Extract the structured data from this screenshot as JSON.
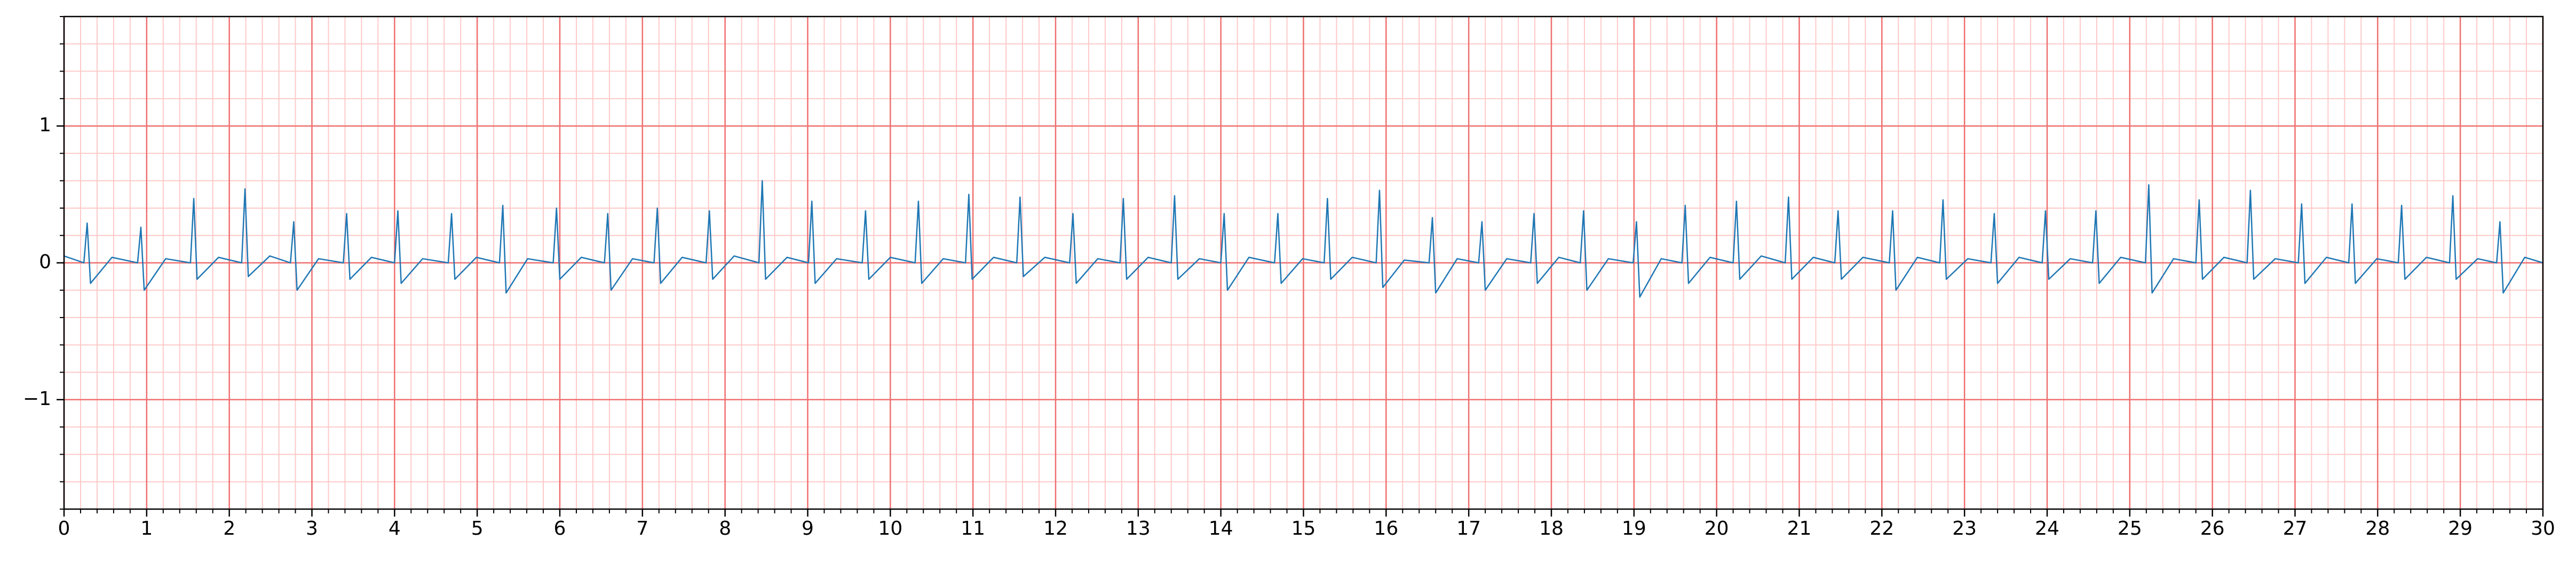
{
  "chart_data": {
    "type": "line",
    "x": [
      0,
      0.24,
      0.28,
      0.32,
      0.58,
      0.89,
      0.93,
      0.97,
      1.23,
      1.53,
      1.57,
      1.61,
      1.87,
      2.15,
      2.19,
      2.23,
      2.49,
      2.74,
      2.78,
      2.82,
      3.08,
      3.38,
      3.42,
      3.46,
      3.72,
      4.0,
      4.04,
      4.08,
      4.34,
      4.65,
      4.69,
      4.73,
      4.99,
      5.27,
      5.31,
      5.35,
      5.61,
      5.92,
      5.96,
      6.0,
      6.26,
      6.54,
      6.58,
      6.62,
      6.88,
      7.14,
      7.18,
      7.22,
      7.48,
      7.77,
      7.81,
      7.85,
      8.11,
      8.41,
      8.45,
      8.49,
      8.75,
      9.01,
      9.05,
      9.09,
      9.35,
      9.66,
      9.7,
      9.74,
      10.0,
      10.3,
      10.34,
      10.38,
      10.64,
      10.91,
      10.95,
      10.99,
      11.25,
      11.53,
      11.57,
      11.61,
      11.87,
      12.17,
      12.21,
      12.25,
      12.51,
      12.78,
      12.82,
      12.86,
      13.12,
      13.4,
      13.44,
      13.48,
      13.74,
      14.0,
      14.04,
      14.08,
      14.34,
      14.65,
      14.69,
      14.73,
      14.99,
      15.25,
      15.29,
      15.33,
      15.59,
      15.88,
      15.92,
      15.96,
      16.22,
      16.52,
      16.56,
      16.6,
      16.86,
      17.12,
      17.16,
      17.2,
      17.46,
      17.75,
      17.79,
      17.83,
      18.09,
      18.35,
      18.39,
      18.43,
      18.69,
      18.99,
      19.03,
      19.07,
      19.33,
      19.58,
      19.62,
      19.66,
      19.92,
      20.2,
      20.24,
      20.28,
      20.54,
      20.83,
      20.87,
      20.91,
      21.17,
      21.43,
      21.47,
      21.51,
      21.77,
      22.09,
      22.13,
      22.17,
      22.43,
      22.7,
      22.74,
      22.78,
      23.04,
      23.32,
      23.36,
      23.4,
      23.66,
      23.94,
      23.98,
      24.02,
      24.28,
      24.55,
      24.59,
      24.63,
      24.89,
      25.19,
      25.23,
      25.27,
      25.53,
      25.8,
      25.84,
      25.88,
      26.14,
      26.42,
      26.46,
      26.5,
      26.76,
      27.04,
      27.08,
      27.12,
      27.38,
      27.65,
      27.69,
      27.73,
      27.99,
      28.25,
      28.29,
      28.33,
      28.59,
      28.87,
      28.91,
      28.95,
      29.21,
      29.44,
      29.48,
      29.52,
      29.78,
      30
    ],
    "series": [
      {
        "color": "#1f77b4",
        "values": [
          0.05,
          0,
          0.29,
          -0.15,
          0.04,
          0,
          0.26,
          -0.2,
          0.03,
          0,
          0.47,
          -0.12,
          0.04,
          0,
          0.54,
          -0.1,
          0.05,
          0,
          0.3,
          -0.2,
          0.03,
          0,
          0.36,
          -0.12,
          0.04,
          0,
          0.38,
          -0.15,
          0.03,
          0,
          0.36,
          -0.12,
          0.04,
          0,
          0.42,
          -0.22,
          0.03,
          0,
          0.4,
          -0.12,
          0.04,
          0,
          0.36,
          -0.2,
          0.03,
          0,
          0.4,
          -0.15,
          0.04,
          0,
          0.38,
          -0.12,
          0.05,
          0,
          0.6,
          -0.12,
          0.04,
          0,
          0.45,
          -0.15,
          0.03,
          0,
          0.38,
          -0.12,
          0.04,
          0,
          0.45,
          -0.15,
          0.03,
          0,
          0.5,
          -0.12,
          0.04,
          0,
          0.48,
          -0.1,
          0.04,
          0,
          0.36,
          -0.15,
          0.03,
          0,
          0.47,
          -0.12,
          0.04,
          0,
          0.49,
          -0.12,
          0.03,
          0,
          0.36,
          -0.2,
          0.04,
          0,
          0.36,
          -0.15,
          0.03,
          0,
          0.47,
          -0.12,
          0.04,
          0,
          0.53,
          -0.18,
          0.02,
          0,
          0.33,
          -0.22,
          0.03,
          0,
          0.3,
          -0.2,
          0.03,
          0,
          0.36,
          -0.15,
          0.04,
          0,
          0.38,
          -0.2,
          0.03,
          0,
          0.3,
          -0.25,
          0.03,
          0,
          0.42,
          -0.15,
          0.04,
          0,
          0.45,
          -0.12,
          0.05,
          0,
          0.48,
          -0.12,
          0.04,
          0,
          0.38,
          -0.12,
          0.04,
          0,
          0.38,
          -0.2,
          0.04,
          0,
          0.46,
          -0.12,
          0.03,
          0,
          0.36,
          -0.15,
          0.04,
          0,
          0.38,
          -0.12,
          0.03,
          0,
          0.38,
          -0.15,
          0.04,
          0,
          0.57,
          -0.22,
          0.03,
          0,
          0.46,
          -0.12,
          0.04,
          0,
          0.53,
          -0.12,
          0.03,
          0,
          0.43,
          -0.15,
          0.04,
          0,
          0.43,
          -0.15,
          0.03,
          0,
          0.42,
          -0.12,
          0.04,
          0,
          0.49,
          -0.12,
          0.03,
          0,
          0.3,
          -0.22,
          0.04,
          0
        ]
      }
    ],
    "xlim": [
      0,
      30
    ],
    "ylim": [
      -1.8,
      1.8
    ],
    "xticks": [
      0,
      1,
      2,
      3,
      4,
      5,
      6,
      7,
      8,
      9,
      10,
      11,
      12,
      13,
      14,
      15,
      16,
      17,
      18,
      19,
      20,
      21,
      22,
      23,
      24,
      25,
      26,
      27,
      28,
      29,
      30
    ],
    "yticks": [
      {
        "value": -1,
        "label": "−1"
      },
      0,
      1
    ],
    "grid": true,
    "minor_divisions": 5
  }
}
